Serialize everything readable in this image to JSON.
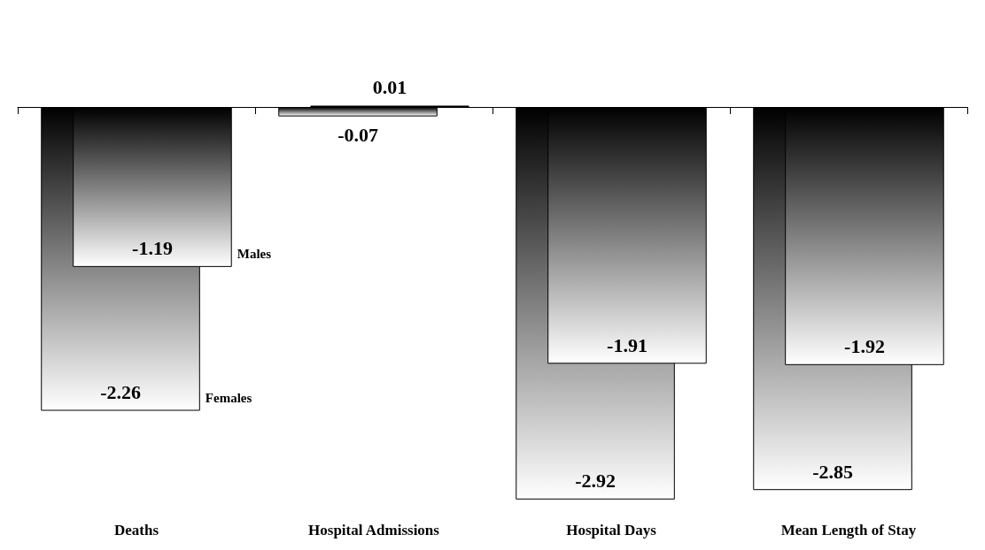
{
  "chart_data": {
    "type": "bar",
    "categories": [
      "Deaths",
      "Hospital Admissions",
      "Hospital Days",
      "Mean Length of Stay"
    ],
    "series": [
      {
        "name": "Females",
        "color": "#000000",
        "values": [
          -2.26,
          -0.07,
          -2.92,
          -2.85
        ]
      },
      {
        "name": "Males",
        "color": "#000000",
        "values": [
          -1.19,
          0.01,
          -1.91,
          -1.92
        ]
      }
    ],
    "data_labels": true,
    "legend": false,
    "grid": false
  }
}
